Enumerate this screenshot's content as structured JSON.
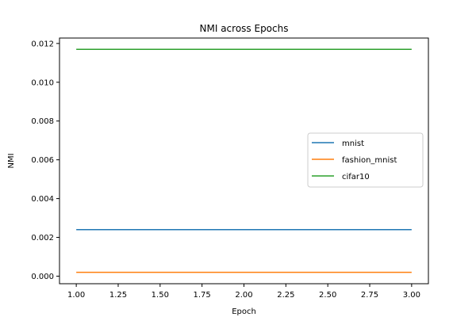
{
  "chart_data": {
    "type": "line",
    "title": "NMI across Epochs",
    "xlabel": "Epoch",
    "ylabel": "NMI",
    "x": [
      1.0,
      2.0,
      3.0
    ],
    "series": [
      {
        "name": "mnist",
        "color": "#1f77b4",
        "values": [
          0.0024,
          0.0024,
          0.0024
        ]
      },
      {
        "name": "fashion_mnist",
        "color": "#ff7f0e",
        "values": [
          0.0002,
          0.0002,
          0.0002
        ]
      },
      {
        "name": "cifar10",
        "color": "#2ca02c",
        "values": [
          0.0117,
          0.0117,
          0.0117
        ]
      }
    ],
    "xlim": [
      0.9,
      3.1
    ],
    "ylim": [
      -0.00039,
      0.01228
    ],
    "xticks": [
      1.0,
      1.25,
      1.5,
      1.75,
      2.0,
      2.25,
      2.5,
      2.75,
      3.0
    ],
    "xtick_labels": [
      "1.00",
      "1.25",
      "1.50",
      "1.75",
      "2.00",
      "2.25",
      "2.50",
      "2.75",
      "3.00"
    ],
    "yticks": [
      0.0,
      0.002,
      0.004,
      0.006,
      0.008,
      0.01,
      0.012
    ],
    "ytick_labels": [
      "0.000",
      "0.002",
      "0.004",
      "0.006",
      "0.008",
      "0.010",
      "0.012"
    ],
    "grid": false,
    "legend_position": "center-right"
  }
}
